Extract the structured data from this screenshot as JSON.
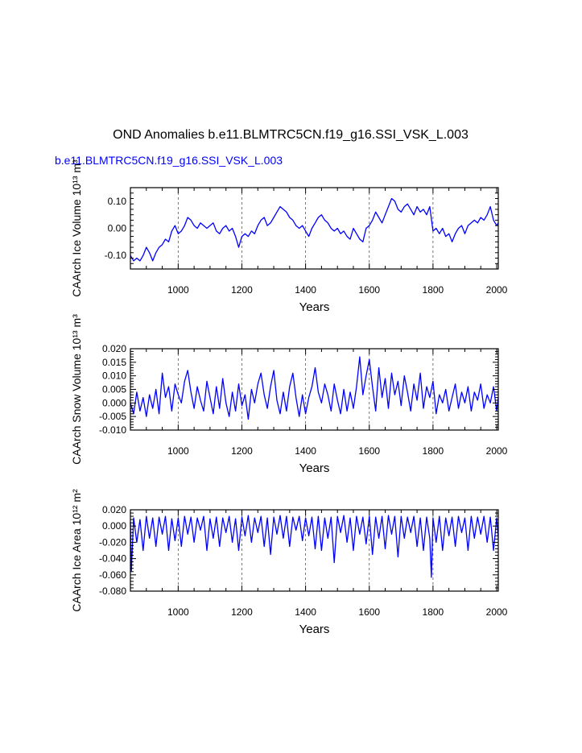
{
  "title": "OND Anomalies b.e11.BLMTRC5CN.f19_g16.SSI_VSK_L.003",
  "legend_label": "b.e11.BLMTRC5CN.f19_g16.SSI_VSK_L.003",
  "colors": {
    "series": "#0000ff",
    "axes": "#000000",
    "grid": "#555555",
    "background": "#ffffff"
  },
  "chart_data": [
    {
      "type": "line",
      "ylabel": "CAArch Ice Volume 10¹³ m³",
      "xlabel": "Years",
      "xlim": [
        850,
        2005
      ],
      "ylim": [
        -0.15,
        0.15
      ],
      "xticks": [
        1000,
        1200,
        1400,
        1600,
        1800,
        2000
      ],
      "xtick_labels": [
        "1000",
        "1200",
        "1400",
        "1600",
        "1800",
        "2000"
      ],
      "yticks": [
        -0.1,
        0.0,
        0.1
      ],
      "ytick_labels": [
        "-0.10",
        "0.00",
        "0.10"
      ],
      "grid_x": [
        1000,
        1200,
        1400,
        1600,
        1800
      ],
      "series": [
        {
          "name": "b.e11.BLMTRC5CN.f19_g16.SSI_VSK_L.003",
          "x": [
            850,
            860,
            870,
            880,
            890,
            900,
            910,
            920,
            930,
            940,
            950,
            960,
            970,
            980,
            990,
            1000,
            1010,
            1020,
            1030,
            1040,
            1050,
            1060,
            1070,
            1080,
            1090,
            1100,
            1110,
            1120,
            1130,
            1140,
            1150,
            1160,
            1170,
            1180,
            1190,
            1200,
            1210,
            1220,
            1230,
            1240,
            1250,
            1260,
            1270,
            1280,
            1290,
            1300,
            1310,
            1320,
            1330,
            1340,
            1350,
            1360,
            1370,
            1380,
            1390,
            1400,
            1410,
            1420,
            1430,
            1440,
            1450,
            1460,
            1470,
            1480,
            1490,
            1500,
            1510,
            1520,
            1530,
            1540,
            1550,
            1560,
            1570,
            1580,
            1590,
            1600,
            1610,
            1620,
            1630,
            1640,
            1650,
            1660,
            1670,
            1680,
            1690,
            1700,
            1710,
            1720,
            1730,
            1740,
            1750,
            1760,
            1770,
            1780,
            1790,
            1800,
            1810,
            1820,
            1830,
            1840,
            1850,
            1860,
            1870,
            1880,
            1890,
            1900,
            1910,
            1920,
            1930,
            1940,
            1950,
            1960,
            1970,
            1980,
            1990,
            2000,
            2005
          ],
          "y": [
            -0.1,
            -0.12,
            -0.11,
            -0.12,
            -0.1,
            -0.07,
            -0.09,
            -0.12,
            -0.09,
            -0.07,
            -0.06,
            -0.04,
            -0.05,
            -0.01,
            0.01,
            -0.02,
            -0.01,
            0.01,
            0.04,
            0.03,
            0.01,
            0.0,
            0.02,
            0.01,
            0.0,
            0.01,
            0.02,
            -0.01,
            -0.02,
            0.0,
            0.01,
            -0.01,
            0.0,
            -0.03,
            -0.07,
            -0.03,
            -0.02,
            -0.03,
            -0.01,
            -0.02,
            0.01,
            0.03,
            0.04,
            0.01,
            0.02,
            0.04,
            0.06,
            0.08,
            0.07,
            0.06,
            0.04,
            0.03,
            0.01,
            0.0,
            0.01,
            -0.01,
            -0.03,
            0.0,
            0.02,
            0.04,
            0.05,
            0.03,
            0.02,
            0.0,
            -0.01,
            0.0,
            -0.02,
            -0.01,
            -0.03,
            -0.04,
            0.0,
            -0.02,
            -0.04,
            -0.05,
            0.0,
            0.01,
            0.03,
            0.06,
            0.04,
            0.02,
            0.05,
            0.08,
            0.11,
            0.1,
            0.07,
            0.06,
            0.08,
            0.09,
            0.07,
            0.05,
            0.08,
            0.06,
            0.07,
            0.05,
            0.08,
            -0.01,
            0.0,
            -0.02,
            0.0,
            -0.03,
            -0.02,
            -0.05,
            -0.02,
            0.0,
            0.01,
            -0.02,
            0.01,
            0.02,
            0.03,
            0.02,
            0.04,
            0.03,
            0.05,
            0.08,
            0.03,
            0.01,
            0.02
          ]
        }
      ]
    },
    {
      "type": "line",
      "ylabel": "CAArch Snow Volume 10¹³ m³",
      "xlabel": "Years",
      "xlim": [
        850,
        2005
      ],
      "ylim": [
        -0.01,
        0.02
      ],
      "xticks": [
        1000,
        1200,
        1400,
        1600,
        1800,
        2000
      ],
      "xtick_labels": [
        "1000",
        "1200",
        "1400",
        "1600",
        "1800",
        "2000"
      ],
      "yticks": [
        -0.01,
        -0.005,
        0.0,
        0.005,
        0.01,
        0.015,
        0.02
      ],
      "ytick_labels": [
        "-0.010",
        "-0.005",
        "0.000",
        "0.005",
        "0.010",
        "0.015",
        "0.020"
      ],
      "grid_x": [
        1000,
        1200,
        1400,
        1600,
        1800
      ],
      "series": [
        {
          "name": "b.e11.BLMTRC5CN.f19_g16.SSI_VSK_L.003",
          "x": [
            850,
            860,
            870,
            880,
            890,
            900,
            910,
            920,
            930,
            940,
            950,
            960,
            970,
            980,
            990,
            1000,
            1010,
            1020,
            1030,
            1040,
            1050,
            1060,
            1070,
            1080,
            1090,
            1100,
            1110,
            1120,
            1130,
            1140,
            1150,
            1160,
            1170,
            1180,
            1190,
            1200,
            1210,
            1220,
            1230,
            1240,
            1250,
            1260,
            1270,
            1280,
            1290,
            1300,
            1310,
            1320,
            1330,
            1340,
            1350,
            1360,
            1370,
            1380,
            1390,
            1400,
            1410,
            1420,
            1430,
            1440,
            1450,
            1460,
            1470,
            1480,
            1490,
            1500,
            1510,
            1520,
            1530,
            1540,
            1550,
            1560,
            1570,
            1580,
            1590,
            1600,
            1610,
            1620,
            1630,
            1640,
            1650,
            1660,
            1670,
            1680,
            1690,
            1700,
            1710,
            1720,
            1730,
            1740,
            1750,
            1760,
            1770,
            1780,
            1790,
            1800,
            1810,
            1820,
            1830,
            1840,
            1850,
            1860,
            1870,
            1880,
            1890,
            1900,
            1910,
            1920,
            1930,
            1940,
            1950,
            1960,
            1970,
            1980,
            1990,
            2000,
            2005
          ],
          "y": [
            0.0,
            -0.004,
            0.004,
            -0.003,
            0.002,
            -0.005,
            0.003,
            -0.002,
            0.005,
            -0.004,
            0.011,
            0.002,
            0.006,
            -0.003,
            0.007,
            0.003,
            0.0,
            0.008,
            0.012,
            0.004,
            -0.002,
            0.006,
            0.001,
            -0.003,
            0.008,
            0.002,
            -0.004,
            0.006,
            -0.002,
            0.009,
            0.0,
            -0.005,
            0.004,
            -0.003,
            0.007,
            -0.001,
            0.003,
            -0.006,
            0.005,
            0.0,
            0.007,
            0.011,
            0.003,
            -0.002,
            0.006,
            0.012,
            0.001,
            -0.004,
            0.004,
            -0.003,
            0.006,
            0.011,
            0.002,
            -0.005,
            0.003,
            -0.004,
            0.002,
            0.006,
            0.013,
            0.004,
            0.0,
            0.007,
            0.003,
            -0.003,
            0.007,
            0.001,
            -0.004,
            0.005,
            -0.003,
            0.004,
            -0.002,
            0.006,
            0.017,
            0.003,
            0.01,
            0.016,
            0.006,
            -0.003,
            0.013,
            0.002,
            0.009,
            -0.002,
            0.011,
            0.003,
            0.008,
            -0.001,
            0.01,
            0.004,
            -0.003,
            0.007,
            0.001,
            0.011,
            -0.002,
            0.006,
            0.002,
            0.008,
            -0.004,
            0.003,
            0.0,
            0.005,
            -0.003,
            0.002,
            0.007,
            -0.002,
            0.004,
            0.0,
            0.006,
            -0.003,
            0.004,
            0.001,
            0.007,
            -0.002,
            0.003,
            0.0,
            0.006,
            -0.003,
            0.002
          ]
        }
      ]
    },
    {
      "type": "line",
      "ylabel": "CAArch Ice Area 10¹² m²",
      "xlabel": "Years",
      "xlim": [
        850,
        2005
      ],
      "ylim": [
        -0.08,
        0.02
      ],
      "xticks": [
        1000,
        1200,
        1400,
        1600,
        1800,
        2000
      ],
      "xtick_labels": [
        "1000",
        "1200",
        "1400",
        "1600",
        "1800",
        "2000"
      ],
      "yticks": [
        -0.08,
        -0.06,
        -0.04,
        -0.02,
        0.0,
        0.02
      ],
      "ytick_labels": [
        "-0.080",
        "-0.060",
        "-0.040",
        "-0.020",
        "0.000",
        "0.020"
      ],
      "grid_x": [
        1000,
        1200,
        1400,
        1600,
        1800
      ],
      "series": [
        {
          "name": "b.e11.BLMTRC5CN.f19_g16.SSI_VSK_L.003",
          "x": [
            850,
            853,
            860,
            870,
            880,
            890,
            900,
            910,
            920,
            930,
            940,
            950,
            960,
            970,
            980,
            990,
            1000,
            1010,
            1020,
            1030,
            1040,
            1050,
            1060,
            1070,
            1080,
            1090,
            1100,
            1110,
            1120,
            1130,
            1140,
            1150,
            1160,
            1170,
            1180,
            1190,
            1200,
            1210,
            1220,
            1230,
            1240,
            1250,
            1260,
            1270,
            1280,
            1290,
            1300,
            1310,
            1320,
            1330,
            1340,
            1350,
            1360,
            1370,
            1380,
            1390,
            1400,
            1410,
            1420,
            1430,
            1440,
            1450,
            1460,
            1470,
            1480,
            1490,
            1500,
            1510,
            1520,
            1530,
            1540,
            1550,
            1560,
            1570,
            1580,
            1590,
            1600,
            1610,
            1620,
            1630,
            1640,
            1650,
            1660,
            1670,
            1680,
            1690,
            1700,
            1710,
            1720,
            1730,
            1740,
            1750,
            1760,
            1770,
            1780,
            1790,
            1795,
            1800,
            1810,
            1820,
            1830,
            1840,
            1850,
            1860,
            1870,
            1880,
            1890,
            1900,
            1910,
            1920,
            1930,
            1940,
            1950,
            1960,
            1970,
            1980,
            1990,
            2000,
            2005
          ],
          "y": [
            0.005,
            -0.055,
            0.01,
            -0.02,
            0.008,
            -0.03,
            0.012,
            -0.015,
            0.01,
            -0.025,
            0.011,
            -0.01,
            0.012,
            -0.03,
            0.009,
            -0.018,
            0.01,
            -0.025,
            0.012,
            -0.01,
            0.011,
            -0.02,
            0.01,
            -0.005,
            0.012,
            -0.03,
            0.009,
            -0.015,
            0.011,
            -0.025,
            0.01,
            -0.008,
            0.012,
            -0.02,
            0.009,
            -0.03,
            0.011,
            -0.012,
            0.013,
            -0.02,
            0.01,
            -0.008,
            0.012,
            -0.025,
            0.01,
            -0.035,
            0.011,
            -0.01,
            0.013,
            -0.015,
            0.012,
            -0.025,
            0.011,
            -0.005,
            0.012,
            -0.018,
            0.01,
            -0.012,
            0.011,
            -0.028,
            0.012,
            -0.03,
            0.01,
            -0.015,
            0.011,
            -0.045,
            0.012,
            -0.008,
            0.013,
            -0.02,
            0.01,
            -0.03,
            0.012,
            -0.01,
            0.011,
            -0.022,
            0.012,
            -0.035,
            0.011,
            -0.015,
            0.012,
            -0.028,
            0.013,
            -0.01,
            0.012,
            -0.038,
            0.012,
            -0.015,
            0.011,
            -0.008,
            0.012,
            -0.025,
            0.01,
            -0.03,
            0.011,
            -0.015,
            -0.063,
            0.01,
            -0.02,
            0.012,
            -0.03,
            0.01,
            -0.012,
            0.011,
            -0.025,
            0.012,
            -0.008,
            0.01,
            -0.03,
            0.012,
            -0.015,
            0.011,
            -0.01,
            0.012,
            -0.02,
            0.011,
            -0.03,
            0.01,
            -0.015
          ]
        }
      ]
    }
  ]
}
